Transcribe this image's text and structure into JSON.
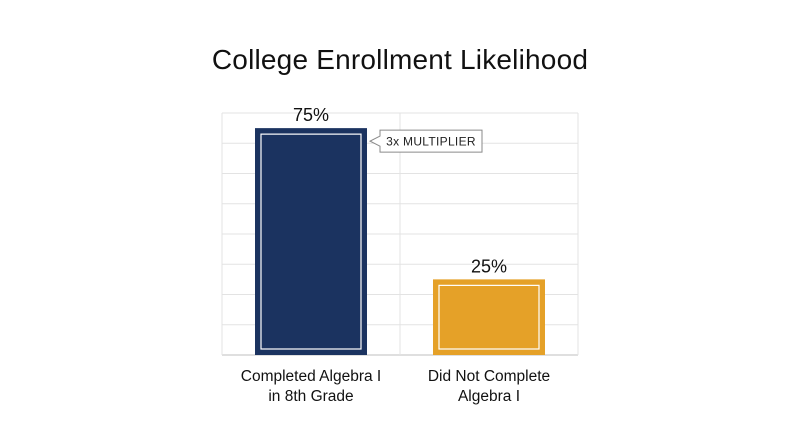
{
  "chart_data": {
    "type": "bar",
    "title": "College Enrollment Likelihood",
    "categories": [
      [
        "Completed Algebra I",
        "in 8th Grade"
      ],
      [
        "Did Not Complete",
        "Algebra I"
      ]
    ],
    "values": [
      75,
      25
    ],
    "value_labels": [
      "75%",
      "25%"
    ],
    "colors": [
      "#1b3360",
      "#e5a128"
    ],
    "ylim": [
      0,
      80
    ],
    "gridlines": true,
    "annotation": {
      "text": "3x MULTIPLIER",
      "category_index": 0
    }
  }
}
